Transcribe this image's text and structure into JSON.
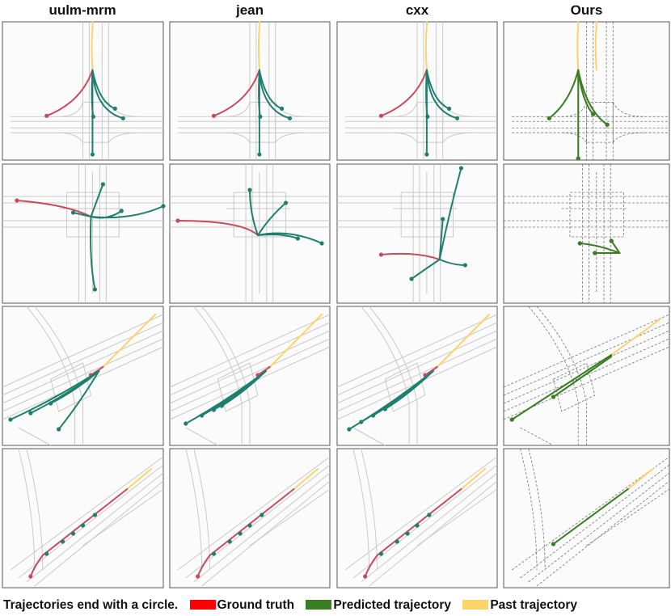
{
  "columns": [
    "uulm-mrm",
    "jean",
    "cxx",
    "Ours"
  ],
  "colors": {
    "ground_truth": "#ff0000",
    "ground_truth_plot": "#c84a5e",
    "predicted": "#3a7d23",
    "baseline_pred": "#1f7f6f",
    "past": "#fcd46a",
    "map_lines": "#c9c9c9",
    "map_dark": "#777777",
    "panel_bg": "#fbfbfb"
  },
  "legend": {
    "note": "Trajectories end with a circle.",
    "items": [
      {
        "label": "Ground truth",
        "color": "#ff0000"
      },
      {
        "label": "Predicted trajectory",
        "color": "#3a7d23"
      },
      {
        "label": "Past trajectory",
        "color": "#fcd46a"
      }
    ]
  }
}
